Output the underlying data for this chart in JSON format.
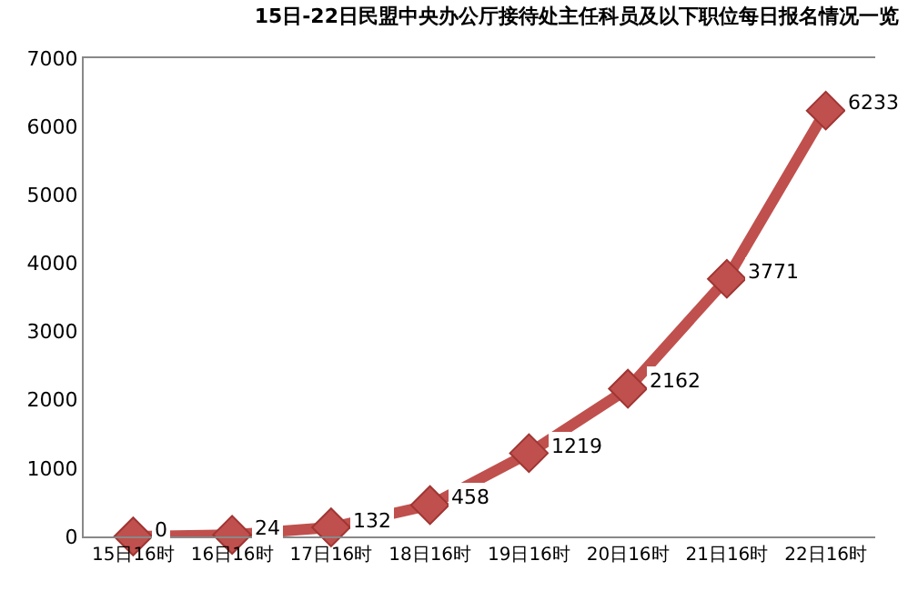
{
  "chart_data": {
    "type": "line",
    "title": "15日-22日民盟中央办公厅接待处主任科员及以下职位每日报名情况一览",
    "categories": [
      "15日16时",
      "16日16时",
      "17日16时",
      "18日16时",
      "19日16时",
      "20日16时",
      "21日16时",
      "22日16时"
    ],
    "series": [
      {
        "color": "#c0504d",
        "values": [
          0,
          24,
          132,
          458,
          1219,
          2162,
          3771,
          6233
        ]
      }
    ],
    "ylim": [
      0,
      7000
    ],
    "yticks": [
      0,
      1000,
      2000,
      3000,
      4000,
      5000,
      6000,
      7000
    ],
    "grid": false,
    "marker": "diamond",
    "line_style": "solid",
    "data_labels": true
  }
}
